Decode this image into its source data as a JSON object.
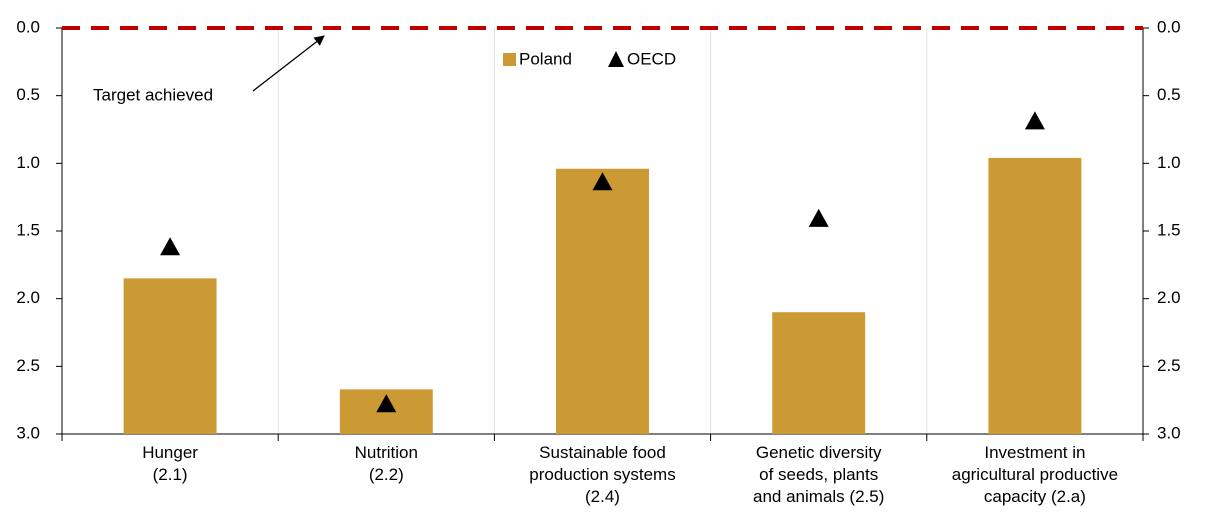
{
  "chart_data": {
    "type": "bar",
    "categories": [
      "Hunger\n(2.1)",
      "Nutrition\n(2.2)",
      "Sustainable food\nproduction systems\n(2.4)",
      "Genetic diversity\nof seeds, plants\nand animals (2.5)",
      "Investment in\nagricultural productive\ncapacity (2.a)"
    ],
    "series": [
      {
        "name": "Poland",
        "color": "#cc9a35",
        "values": [
          1.85,
          2.67,
          1.04,
          2.1,
          0.96
        ]
      },
      {
        "name": "OECD",
        "color": "#000000",
        "values": [
          1.62,
          2.78,
          1.14,
          1.41,
          0.69
        ]
      }
    ],
    "ylim": [
      0,
      3
    ],
    "inverted": true,
    "yticks": [
      {
        "value": 0,
        "label": "0.0"
      },
      0.5,
      {
        "value": 1,
        "label": "1.0"
      },
      1.5,
      {
        "value": 2,
        "label": "2.0"
      },
      2.5,
      {
        "value": 3,
        "label": "3.0"
      }
    ],
    "target": {
      "value": 0,
      "color": "#c00000",
      "annotation": "Target achieved"
    },
    "grid": true
  }
}
